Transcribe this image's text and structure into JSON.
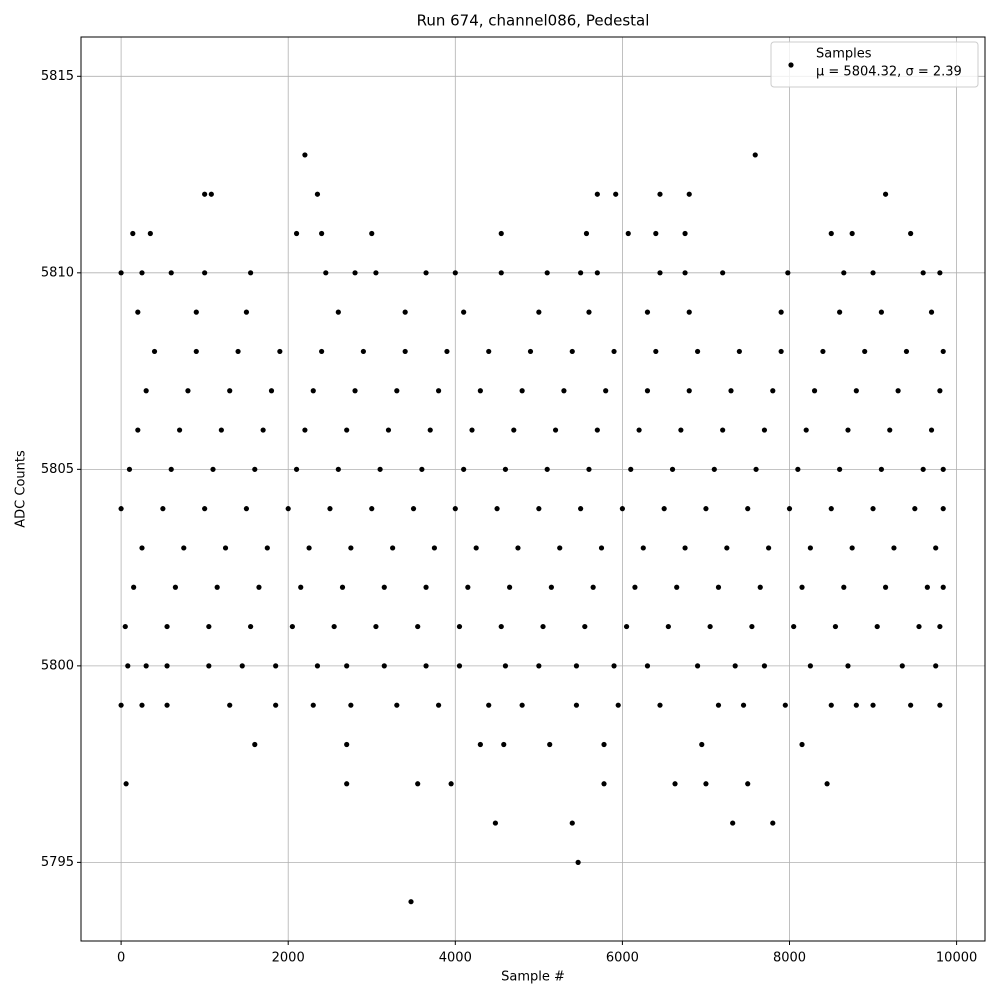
{
  "chart_data": {
    "type": "scatter",
    "title": "Run 674, channel086, Pedestal",
    "x_label": "Sample #",
    "y_label": "ADC Counts",
    "xlim": [
      -480,
      10340
    ],
    "ylim": [
      5793,
      5816
    ],
    "xticks": [
      0,
      2000,
      4000,
      6000,
      8000,
      10000
    ],
    "yticks": [
      5795,
      5800,
      5805,
      5810,
      5815
    ],
    "grid": true,
    "legend_position": "upper right",
    "annotation": "μ = 5804.32, σ = 2.39",
    "series": [
      {
        "name": "Samples",
        "color": "#000000",
        "x": [
          50,
          550,
          1050,
          1550,
          2050,
          2550,
          3050,
          3550,
          4050,
          4550,
          5050,
          5550,
          6050,
          6550,
          7050,
          7550,
          8050,
          8550,
          9050,
          9550,
          9800,
          150,
          650,
          1150,
          1650,
          2150,
          2650,
          3150,
          3650,
          4150,
          4650,
          5150,
          5650,
          6150,
          6650,
          7150,
          7650,
          8150,
          8650,
          9150,
          9650,
          9840,
          250,
          750,
          1250,
          1750,
          2250,
          2750,
          3250,
          3750,
          4250,
          4750,
          5250,
          5750,
          6250,
          6750,
          7250,
          7750,
          8250,
          8750,
          9250,
          9750,
          0,
          500,
          1000,
          1500,
          2000,
          2500,
          3000,
          3500,
          4000,
          4500,
          5000,
          5500,
          6000,
          6500,
          7000,
          7500,
          8000,
          8500,
          9000,
          9500,
          9840,
          100,
          600,
          1100,
          1600,
          2100,
          2600,
          3100,
          3600,
          4100,
          4600,
          5100,
          5600,
          6100,
          6600,
          7100,
          7600,
          8100,
          8600,
          9100,
          9600,
          9840,
          200,
          700,
          1200,
          1700,
          2200,
          2700,
          3200,
          3700,
          4200,
          4700,
          5200,
          5700,
          6200,
          6700,
          7200,
          7700,
          8200,
          8700,
          9200,
          9700,
          300,
          800,
          1300,
          1800,
          2300,
          2800,
          3300,
          3800,
          4300,
          4800,
          5300,
          5800,
          6300,
          6800,
          7300,
          7800,
          8300,
          8800,
          9300,
          9800,
          400,
          900,
          1400,
          1900,
          2400,
          2900,
          3400,
          3900,
          4400,
          4900,
          5400,
          5900,
          6400,
          6900,
          7400,
          7900,
          8400,
          8900,
          9400,
          9840,
          200,
          900,
          1500,
          2600,
          3400,
          4100,
          5000,
          5600,
          6300,
          6800,
          7900,
          8600,
          9100,
          9700,
          0,
          250,
          600,
          1000,
          1550,
          2450,
          2800,
          3050,
          3650,
          4000,
          4550,
          5100,
          5500,
          5700,
          6450,
          6750,
          7200,
          7980,
          8650,
          9000,
          9600,
          9800,
          80,
          300,
          550,
          1050,
          1450,
          1850,
          2350,
          2700,
          3150,
          3650,
          4050,
          4600,
          5000,
          5450,
          5900,
          6300,
          6900,
          7350,
          7700,
          8250,
          8700,
          9350,
          9750,
          250,
          550,
          1300,
          1850,
          2300,
          2750,
          3300,
          3800,
          4400,
          4800,
          5450,
          5950,
          6450,
          7150,
          7450,
          7950,
          8500,
          8800,
          9000,
          9450,
          9800,
          0,
          60,
          140,
          350,
          1000,
          1080,
          1600,
          2200,
          2350,
          2400,
          2100,
          2700,
          2700,
          3000,
          3470,
          3550,
          3950,
          4480,
          4550,
          4300,
          4580,
          5130,
          5400,
          5470,
          5570,
          5700,
          5780,
          5780,
          5920,
          6070,
          6450,
          6630,
          6800,
          6750,
          7000,
          7320,
          7500,
          7590,
          7800,
          8450,
          8500,
          8750,
          9150,
          9450,
          6400,
          6950,
          8150
        ],
        "values": [
          5801,
          5801,
          5801,
          5801,
          5801,
          5801,
          5801,
          5801,
          5801,
          5801,
          5801,
          5801,
          5801,
          5801,
          5801,
          5801,
          5801,
          5801,
          5801,
          5801,
          5801,
          5802,
          5802,
          5802,
          5802,
          5802,
          5802,
          5802,
          5802,
          5802,
          5802,
          5802,
          5802,
          5802,
          5802,
          5802,
          5802,
          5802,
          5802,
          5802,
          5802,
          5802,
          5803,
          5803,
          5803,
          5803,
          5803,
          5803,
          5803,
          5803,
          5803,
          5803,
          5803,
          5803,
          5803,
          5803,
          5803,
          5803,
          5803,
          5803,
          5803,
          5803,
          5804,
          5804,
          5804,
          5804,
          5804,
          5804,
          5804,
          5804,
          5804,
          5804,
          5804,
          5804,
          5804,
          5804,
          5804,
          5804,
          5804,
          5804,
          5804,
          5804,
          5804,
          5805,
          5805,
          5805,
          5805,
          5805,
          5805,
          5805,
          5805,
          5805,
          5805,
          5805,
          5805,
          5805,
          5805,
          5805,
          5805,
          5805,
          5805,
          5805,
          5805,
          5805,
          5806,
          5806,
          5806,
          5806,
          5806,
          5806,
          5806,
          5806,
          5806,
          5806,
          5806,
          5806,
          5806,
          5806,
          5806,
          5806,
          5806,
          5806,
          5806,
          5806,
          5807,
          5807,
          5807,
          5807,
          5807,
          5807,
          5807,
          5807,
          5807,
          5807,
          5807,
          5807,
          5807,
          5807,
          5807,
          5807,
          5807,
          5807,
          5807,
          5807,
          5808,
          5808,
          5808,
          5808,
          5808,
          5808,
          5808,
          5808,
          5808,
          5808,
          5808,
          5808,
          5808,
          5808,
          5808,
          5808,
          5808,
          5808,
          5808,
          5808,
          5809,
          5809,
          5809,
          5809,
          5809,
          5809,
          5809,
          5809,
          5809,
          5809,
          5809,
          5809,
          5809,
          5809,
          5810,
          5810,
          5810,
          5810,
          5810,
          5810,
          5810,
          5810,
          5810,
          5810,
          5810,
          5810,
          5810,
          5810,
          5810,
          5810,
          5810,
          5810,
          5810,
          5810,
          5810,
          5810,
          5800,
          5800,
          5800,
          5800,
          5800,
          5800,
          5800,
          5800,
          5800,
          5800,
          5800,
          5800,
          5800,
          5800,
          5800,
          5800,
          5800,
          5800,
          5800,
          5800,
          5800,
          5800,
          5800,
          5799,
          5799,
          5799,
          5799,
          5799,
          5799,
          5799,
          5799,
          5799,
          5799,
          5799,
          5799,
          5799,
          5799,
          5799,
          5799,
          5799,
          5799,
          5799,
          5799,
          5799,
          5799,
          5797,
          5811,
          5811,
          5812,
          5812,
          5798,
          5813,
          5812,
          5811,
          5811,
          5797,
          5798,
          5811,
          5794,
          5797,
          5797,
          5796,
          5811,
          5798,
          5798,
          5798,
          5796,
          5795,
          5811,
          5812,
          5797,
          5798,
          5812,
          5811,
          5812,
          5797,
          5812,
          5811,
          5797,
          5796,
          5797,
          5813,
          5796,
          5797,
          5811,
          5811,
          5812,
          5811,
          5811,
          5798,
          5798
        ]
      }
    ]
  }
}
